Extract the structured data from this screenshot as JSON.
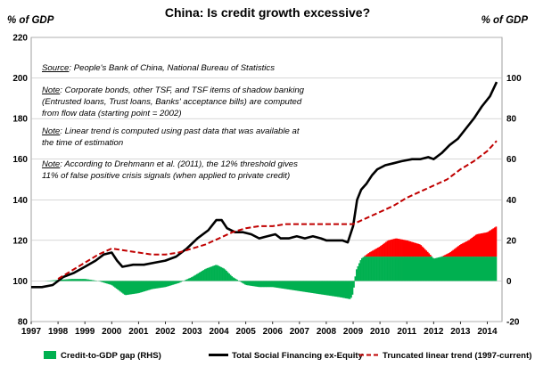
{
  "chart_data": {
    "type": "line",
    "title": "China: Is credit growth excessive?",
    "left_axis_unit": "% of GDP",
    "right_axis_unit": "% of GDP",
    "left_ylim": [
      80,
      220
    ],
    "left_yticks": [
      80,
      100,
      120,
      140,
      160,
      180,
      200,
      220
    ],
    "right_ylim": [
      -20,
      120
    ],
    "right_yticks": [
      -20,
      0,
      20,
      40,
      60,
      80,
      100
    ],
    "x_ticks": [
      "1997",
      "1998",
      "1999",
      "2000",
      "2001",
      "2002",
      "2003",
      "2004",
      "2005",
      "2006",
      "2007",
      "2008",
      "2009",
      "2010",
      "2011",
      "2012",
      "2013",
      "2014"
    ],
    "grid": true,
    "notes": [
      {
        "label": "Source",
        "text": ": People's Bank of China, National Bureau of Statistics"
      },
      {
        "label": "Note",
        "text": ": Corporate bonds, other TSF, and TSF items of shadow banking"
      },
      {
        "label": "",
        "text": "(Entrusted loans, Trust loans, Banks' acceptance bills) are computed"
      },
      {
        "label": "",
        "text": "from flow data (starting point = 2002)"
      },
      {
        "label": "Note",
        "text": ": Linear trend is computed using past data that was available at"
      },
      {
        "label": "",
        "text": "the time of estimation"
      },
      {
        "label": "Note",
        "text": ": According to Drehmann et al. (2011), the 12% threshold gives"
      },
      {
        "label": "",
        "text": "11% of false positive crisis signals (when applied to private credit)"
      }
    ],
    "threshold_rhs": 12,
    "series": [
      {
        "name": "Total Social Financing ex-Equity",
        "axis": "left",
        "color": "#000000",
        "points": [
          [
            1997,
            97
          ],
          [
            1997.4,
            97
          ],
          [
            1997.8,
            98
          ],
          [
            1998.2,
            102
          ],
          [
            1998.6,
            104
          ],
          [
            1999.0,
            107
          ],
          [
            1999.4,
            110
          ],
          [
            1999.7,
            113
          ],
          [
            2000.0,
            114
          ],
          [
            2000.2,
            110
          ],
          [
            2000.4,
            107
          ],
          [
            2000.8,
            108
          ],
          [
            2001.2,
            108
          ],
          [
            2001.6,
            109
          ],
          [
            2002.0,
            110
          ],
          [
            2002.4,
            112
          ],
          [
            2002.8,
            116
          ],
          [
            2003.2,
            121
          ],
          [
            2003.6,
            125
          ],
          [
            2003.9,
            130
          ],
          [
            2004.1,
            130
          ],
          [
            2004.3,
            126
          ],
          [
            2004.6,
            124
          ],
          [
            2004.9,
            124
          ],
          [
            2005.2,
            123
          ],
          [
            2005.5,
            121
          ],
          [
            2005.8,
            122
          ],
          [
            2006.1,
            123
          ],
          [
            2006.3,
            121
          ],
          [
            2006.6,
            121
          ],
          [
            2006.9,
            122
          ],
          [
            2007.2,
            121
          ],
          [
            2007.5,
            122
          ],
          [
            2007.8,
            121
          ],
          [
            2008.0,
            120
          ],
          [
            2008.3,
            120
          ],
          [
            2008.6,
            120
          ],
          [
            2008.8,
            119
          ],
          [
            2009.0,
            127
          ],
          [
            2009.15,
            140
          ],
          [
            2009.3,
            145
          ],
          [
            2009.5,
            148
          ],
          [
            2009.7,
            152
          ],
          [
            2009.9,
            155
          ],
          [
            2010.2,
            157
          ],
          [
            2010.5,
            158
          ],
          [
            2010.8,
            159
          ],
          [
            2011.2,
            160
          ],
          [
            2011.5,
            160
          ],
          [
            2011.8,
            161
          ],
          [
            2012.0,
            160
          ],
          [
            2012.3,
            163
          ],
          [
            2012.6,
            167
          ],
          [
            2012.9,
            170
          ],
          [
            2013.2,
            175
          ],
          [
            2013.5,
            180
          ],
          [
            2013.8,
            186
          ],
          [
            2014.1,
            191
          ],
          [
            2014.35,
            198
          ]
        ]
      },
      {
        "name": "Truncated linear trend (1997-current)",
        "axis": "left",
        "color": "#c00000",
        "points": [
          [
            1998.0,
            101
          ],
          [
            1998.5,
            105
          ],
          [
            1999.0,
            109
          ],
          [
            1999.5,
            113
          ],
          [
            2000.0,
            116
          ],
          [
            2000.5,
            115
          ],
          [
            2001.0,
            114
          ],
          [
            2001.5,
            113
          ],
          [
            2002.0,
            113
          ],
          [
            2002.5,
            114
          ],
          [
            2003.0,
            116
          ],
          [
            2003.5,
            118
          ],
          [
            2004.0,
            121
          ],
          [
            2004.5,
            124
          ],
          [
            2005.0,
            126
          ],
          [
            2005.5,
            127
          ],
          [
            2006.0,
            127
          ],
          [
            2006.5,
            128
          ],
          [
            2007.0,
            128
          ],
          [
            2007.5,
            128
          ],
          [
            2008.0,
            128
          ],
          [
            2008.5,
            128
          ],
          [
            2009.0,
            128
          ],
          [
            2009.5,
            131
          ],
          [
            2010.0,
            134
          ],
          [
            2010.5,
            137
          ],
          [
            2011.0,
            141
          ],
          [
            2011.5,
            144
          ],
          [
            2012.0,
            147
          ],
          [
            2012.5,
            150
          ],
          [
            2013.0,
            155
          ],
          [
            2013.5,
            159
          ],
          [
            2014.0,
            164
          ],
          [
            2014.35,
            169
          ]
        ]
      },
      {
        "name": "Credit-to-GDP gap (RHS)",
        "axis": "right",
        "type": "area",
        "color_below_threshold": "#00b050",
        "color_above_threshold": "#ff0000",
        "points": [
          [
            1997.0,
            0
          ],
          [
            1997.5,
            0
          ],
          [
            1998.0,
            0.5
          ],
          [
            1998.5,
            1
          ],
          [
            1999.0,
            1
          ],
          [
            1999.5,
            0
          ],
          [
            2000.0,
            -2
          ],
          [
            2000.5,
            -7
          ],
          [
            2001.0,
            -6
          ],
          [
            2001.5,
            -4
          ],
          [
            2002.0,
            -3
          ],
          [
            2002.5,
            -1
          ],
          [
            2003.0,
            2
          ],
          [
            2003.5,
            6
          ],
          [
            2003.9,
            8
          ],
          [
            2004.2,
            6
          ],
          [
            2004.5,
            2
          ],
          [
            2005.0,
            -2
          ],
          [
            2005.5,
            -3
          ],
          [
            2006.0,
            -3
          ],
          [
            2006.5,
            -4
          ],
          [
            2007.0,
            -5
          ],
          [
            2007.5,
            -6
          ],
          [
            2008.0,
            -7
          ],
          [
            2008.5,
            -8
          ],
          [
            2008.9,
            -9
          ],
          [
            2009.0,
            -6
          ],
          [
            2009.1,
            5
          ],
          [
            2009.3,
            11
          ],
          [
            2009.6,
            14
          ],
          [
            2010.0,
            17
          ],
          [
            2010.3,
            20
          ],
          [
            2010.6,
            21
          ],
          [
            2011.0,
            20
          ],
          [
            2011.5,
            18
          ],
          [
            2011.8,
            14
          ],
          [
            2012.0,
            11
          ],
          [
            2012.3,
            12
          ],
          [
            2012.6,
            14
          ],
          [
            2013.0,
            18
          ],
          [
            2013.3,
            20
          ],
          [
            2013.6,
            23
          ],
          [
            2014.0,
            24
          ],
          [
            2014.35,
            27
          ]
        ]
      }
    ],
    "legend": [
      {
        "label": "Credit-to-GDP gap (RHS)",
        "swatch": "box",
        "color": "#00b050"
      },
      {
        "label": "Total Social Financing ex-Equity",
        "swatch": "line",
        "color": "#000000"
      },
      {
        "label": "Truncated linear trend (1997-current)",
        "swatch": "dash",
        "color": "#c00000"
      }
    ]
  }
}
